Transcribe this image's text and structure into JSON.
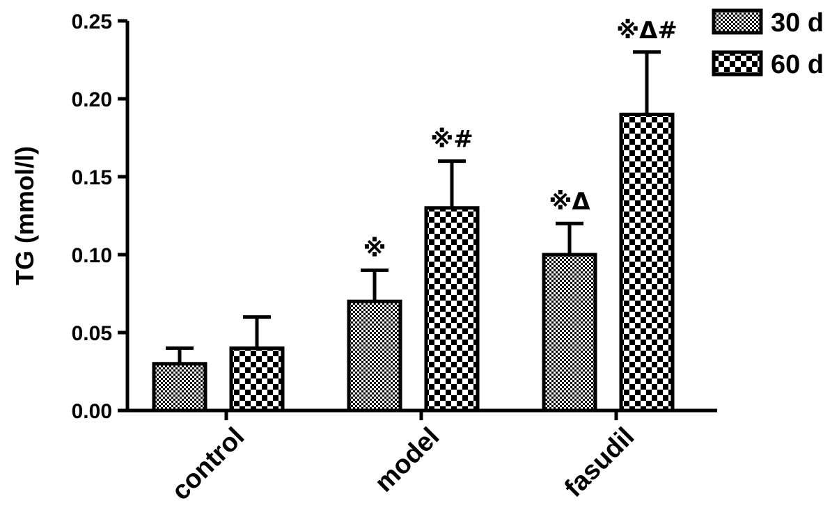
{
  "chart_data": {
    "type": "bar",
    "categories": [
      "control",
      "model",
      "fasudil"
    ],
    "series": [
      {
        "name": "30 d",
        "values": [
          0.03,
          0.07,
          0.1
        ],
        "errors": [
          0.01,
          0.02,
          0.02
        ],
        "pattern": "fine-checker"
      },
      {
        "name": "60 d",
        "values": [
          0.04,
          0.13,
          0.19
        ],
        "errors": [
          0.02,
          0.03,
          0.04
        ],
        "pattern": "coarse-checker"
      }
    ],
    "annotations": [
      {
        "category": "model",
        "series": "30 d",
        "text": "※"
      },
      {
        "category": "model",
        "series": "60 d",
        "text": "※#"
      },
      {
        "category": "fasudil",
        "series": "30 d",
        "text": "※Δ"
      },
      {
        "category": "fasudil",
        "series": "60 d",
        "text": "※Δ#"
      }
    ],
    "title": "",
    "xlabel": "",
    "ylabel": "TG (mmol/l)",
    "ylim": [
      0,
      0.25
    ],
    "yticks": [
      "0.00",
      "0.05",
      "0.10",
      "0.15",
      "0.20",
      "0.25"
    ],
    "grid": false,
    "legend_position": "top-right",
    "colors": {
      "bar_fill": "#000000",
      "background": "#ffffff"
    }
  }
}
